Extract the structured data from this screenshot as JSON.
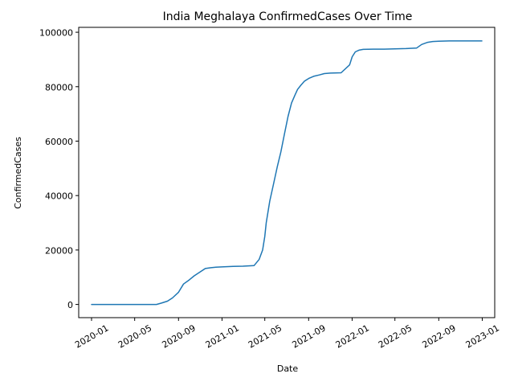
{
  "chart_data": {
    "type": "line",
    "title": "India Meghalaya ConfirmedCases Over Time",
    "xlabel": "Date",
    "ylabel": "ConfirmedCases",
    "x_tick_labels": [
      "2020-01",
      "2020-05",
      "2020-09",
      "2021-01",
      "2021-05",
      "2021-09",
      "2022-01",
      "2022-05",
      "2022-09",
      "2023-01"
    ],
    "y_tick_labels": [
      "0",
      "20000",
      "40000",
      "60000",
      "80000",
      "100000"
    ],
    "xlim": [
      "2019-11-26",
      "2023-02-05"
    ],
    "ylim": [
      -4850,
      101800
    ],
    "grid": false,
    "line_color": "#1f77b4",
    "series": [
      {
        "x": [
          "2020-01-01",
          "2020-03-01",
          "2020-05-01",
          "2020-07-01",
          "2020-07-15",
          "2020-08-01",
          "2020-08-15",
          "2020-09-01",
          "2020-09-15",
          "2020-10-01",
          "2020-10-15",
          "2020-11-01",
          "2020-11-15",
          "2020-12-01",
          "2020-12-15",
          "2021-01-01",
          "2021-02-01",
          "2021-03-01",
          "2021-04-01",
          "2021-04-15",
          "2021-04-25",
          "2021-05-01",
          "2021-05-05",
          "2021-05-10",
          "2021-05-15",
          "2021-05-25",
          "2021-06-05",
          "2021-06-15",
          "2021-06-25",
          "2021-07-05",
          "2021-07-15",
          "2021-07-25",
          "2021-08-01",
          "2021-08-10",
          "2021-08-20",
          "2021-09-01",
          "2021-09-15",
          "2021-10-01",
          "2021-10-15",
          "2021-11-01",
          "2021-12-01",
          "2021-12-25",
          "2022-01-01",
          "2022-01-10",
          "2022-01-20",
          "2022-02-01",
          "2022-03-01",
          "2022-04-01",
          "2022-05-01",
          "2022-06-01",
          "2022-07-01",
          "2022-07-15",
          "2022-08-01",
          "2022-08-15",
          "2022-09-01",
          "2022-10-01",
          "2022-12-31"
        ],
        "y": [
          0,
          0,
          0,
          0,
          500,
          1200,
          2400,
          4500,
          7500,
          9000,
          10500,
          12000,
          13200,
          13500,
          13700,
          13800,
          14000,
          14050,
          14300,
          16500,
          20000,
          25000,
          30000,
          34000,
          38000,
          44000,
          50500,
          56000,
          62500,
          69000,
          74000,
          77000,
          79000,
          80500,
          82000,
          83000,
          83800,
          84300,
          84800,
          85000,
          85100,
          88000,
          91000,
          92800,
          93400,
          93700,
          93800,
          93800,
          93900,
          94000,
          94200,
          95500,
          96300,
          96600,
          96700,
          96800,
          96800
        ]
      }
    ]
  }
}
